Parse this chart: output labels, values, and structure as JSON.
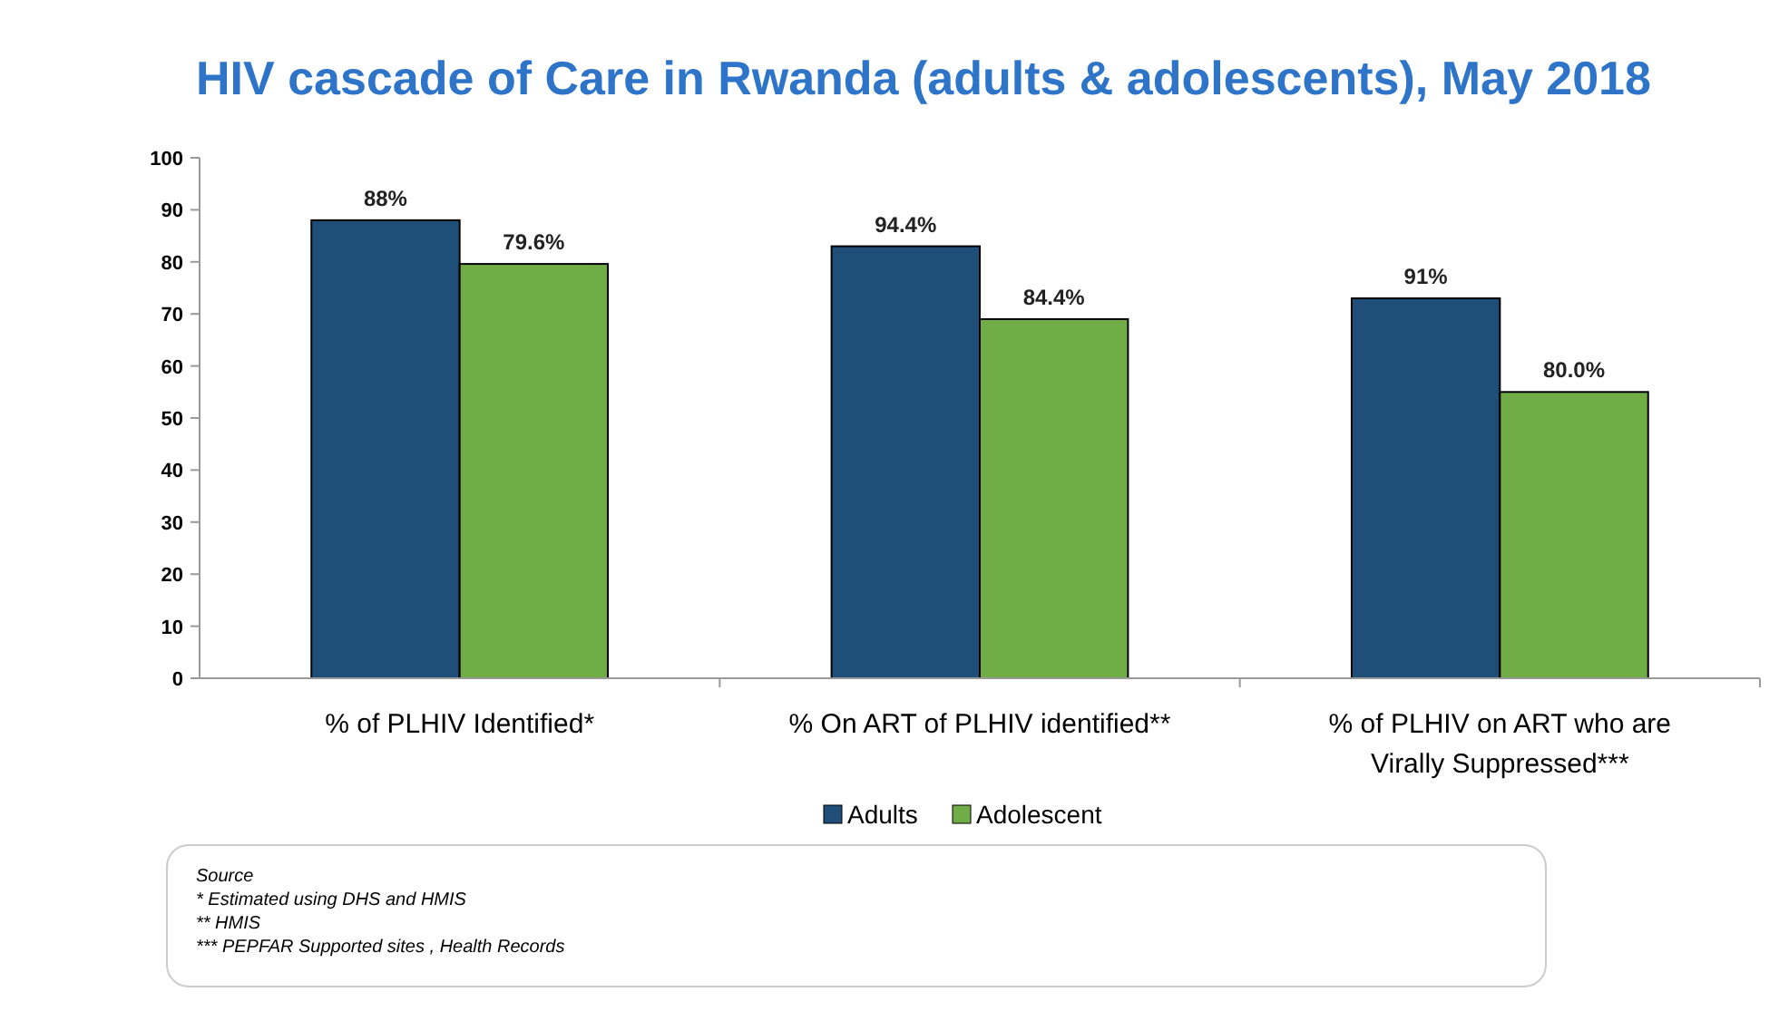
{
  "chart_data": {
    "type": "bar",
    "title": "HIV cascade of Care in Rwanda (adults & adolescents), May  2018",
    "categories": [
      "% of PLHIV Identified*",
      "% On ART of PLHIV identified**",
      "% of PLHIV on ART who are Virally Suppressed***"
    ],
    "series": [
      {
        "name": "Adults",
        "color": "#1f4e79",
        "values": [
          88,
          83,
          73
        ]
      },
      {
        "name": "Adolescent",
        "color": "#70ad47",
        "values": [
          79.6,
          69,
          55
        ]
      }
    ],
    "ylim": [
      0,
      100
    ],
    "yticks": [
      0,
      10,
      20,
      30,
      40,
      50,
      60,
      70,
      80,
      90,
      100
    ],
    "grid": false,
    "legend": "bottom",
    "annotations": [
      {
        "text": "88%",
        "x": "% of PLHIV Identified*",
        "y": 88
      },
      {
        "text": "79.6%",
        "x": "% of PLHIV Identified*",
        "y": 79.6
      },
      {
        "text": "94.4%",
        "x": "% On ART of PLHIV identified**",
        "y": 83
      },
      {
        "text": "84.4%",
        "x": "% On ART of PLHIV identified**",
        "y": 69
      },
      {
        "text": "91%",
        "x": "% of PLHIV on ART who are Virally Suppressed***",
        "y": 73
      },
      {
        "text": "80.0%",
        "x": "% of PLHIV on ART who are Virally Suppressed***",
        "y": 55
      },
      "Source",
      "*   Estimated using DHS and HMIS",
      "** HMIS",
      "*** PEPFAR Supported sites , Health Records"
    ]
  }
}
